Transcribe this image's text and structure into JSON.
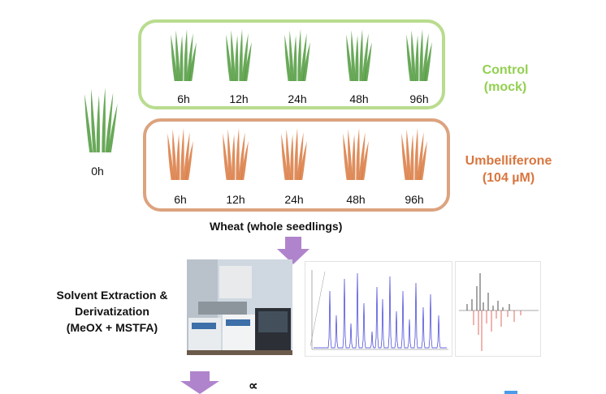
{
  "initial": {
    "time": "0h"
  },
  "groups": [
    {
      "name": "control",
      "label_line1": "Control",
      "label_line2": "(mock)",
      "color": "#92d050",
      "plant_color": "#4f9a3c",
      "times": [
        "6h",
        "12h",
        "24h",
        "48h",
        "96h"
      ]
    },
    {
      "name": "umbelliferone",
      "label_line1": "Umbelliferone",
      "label_line2": "(104 µM)",
      "color": "#d9763f",
      "plant_color": "#d9793f",
      "times": [
        "6h",
        "12h",
        "24h",
        "48h",
        "96h"
      ]
    }
  ],
  "sample_caption": "Wheat (whole seedlings)",
  "extraction": {
    "line1": "Solvent Extraction &",
    "line2": "Derivatization",
    "line3": "(MeOX + MSTFA)"
  },
  "arrow_color": "#b084cc",
  "bottom_symbol": "∝"
}
